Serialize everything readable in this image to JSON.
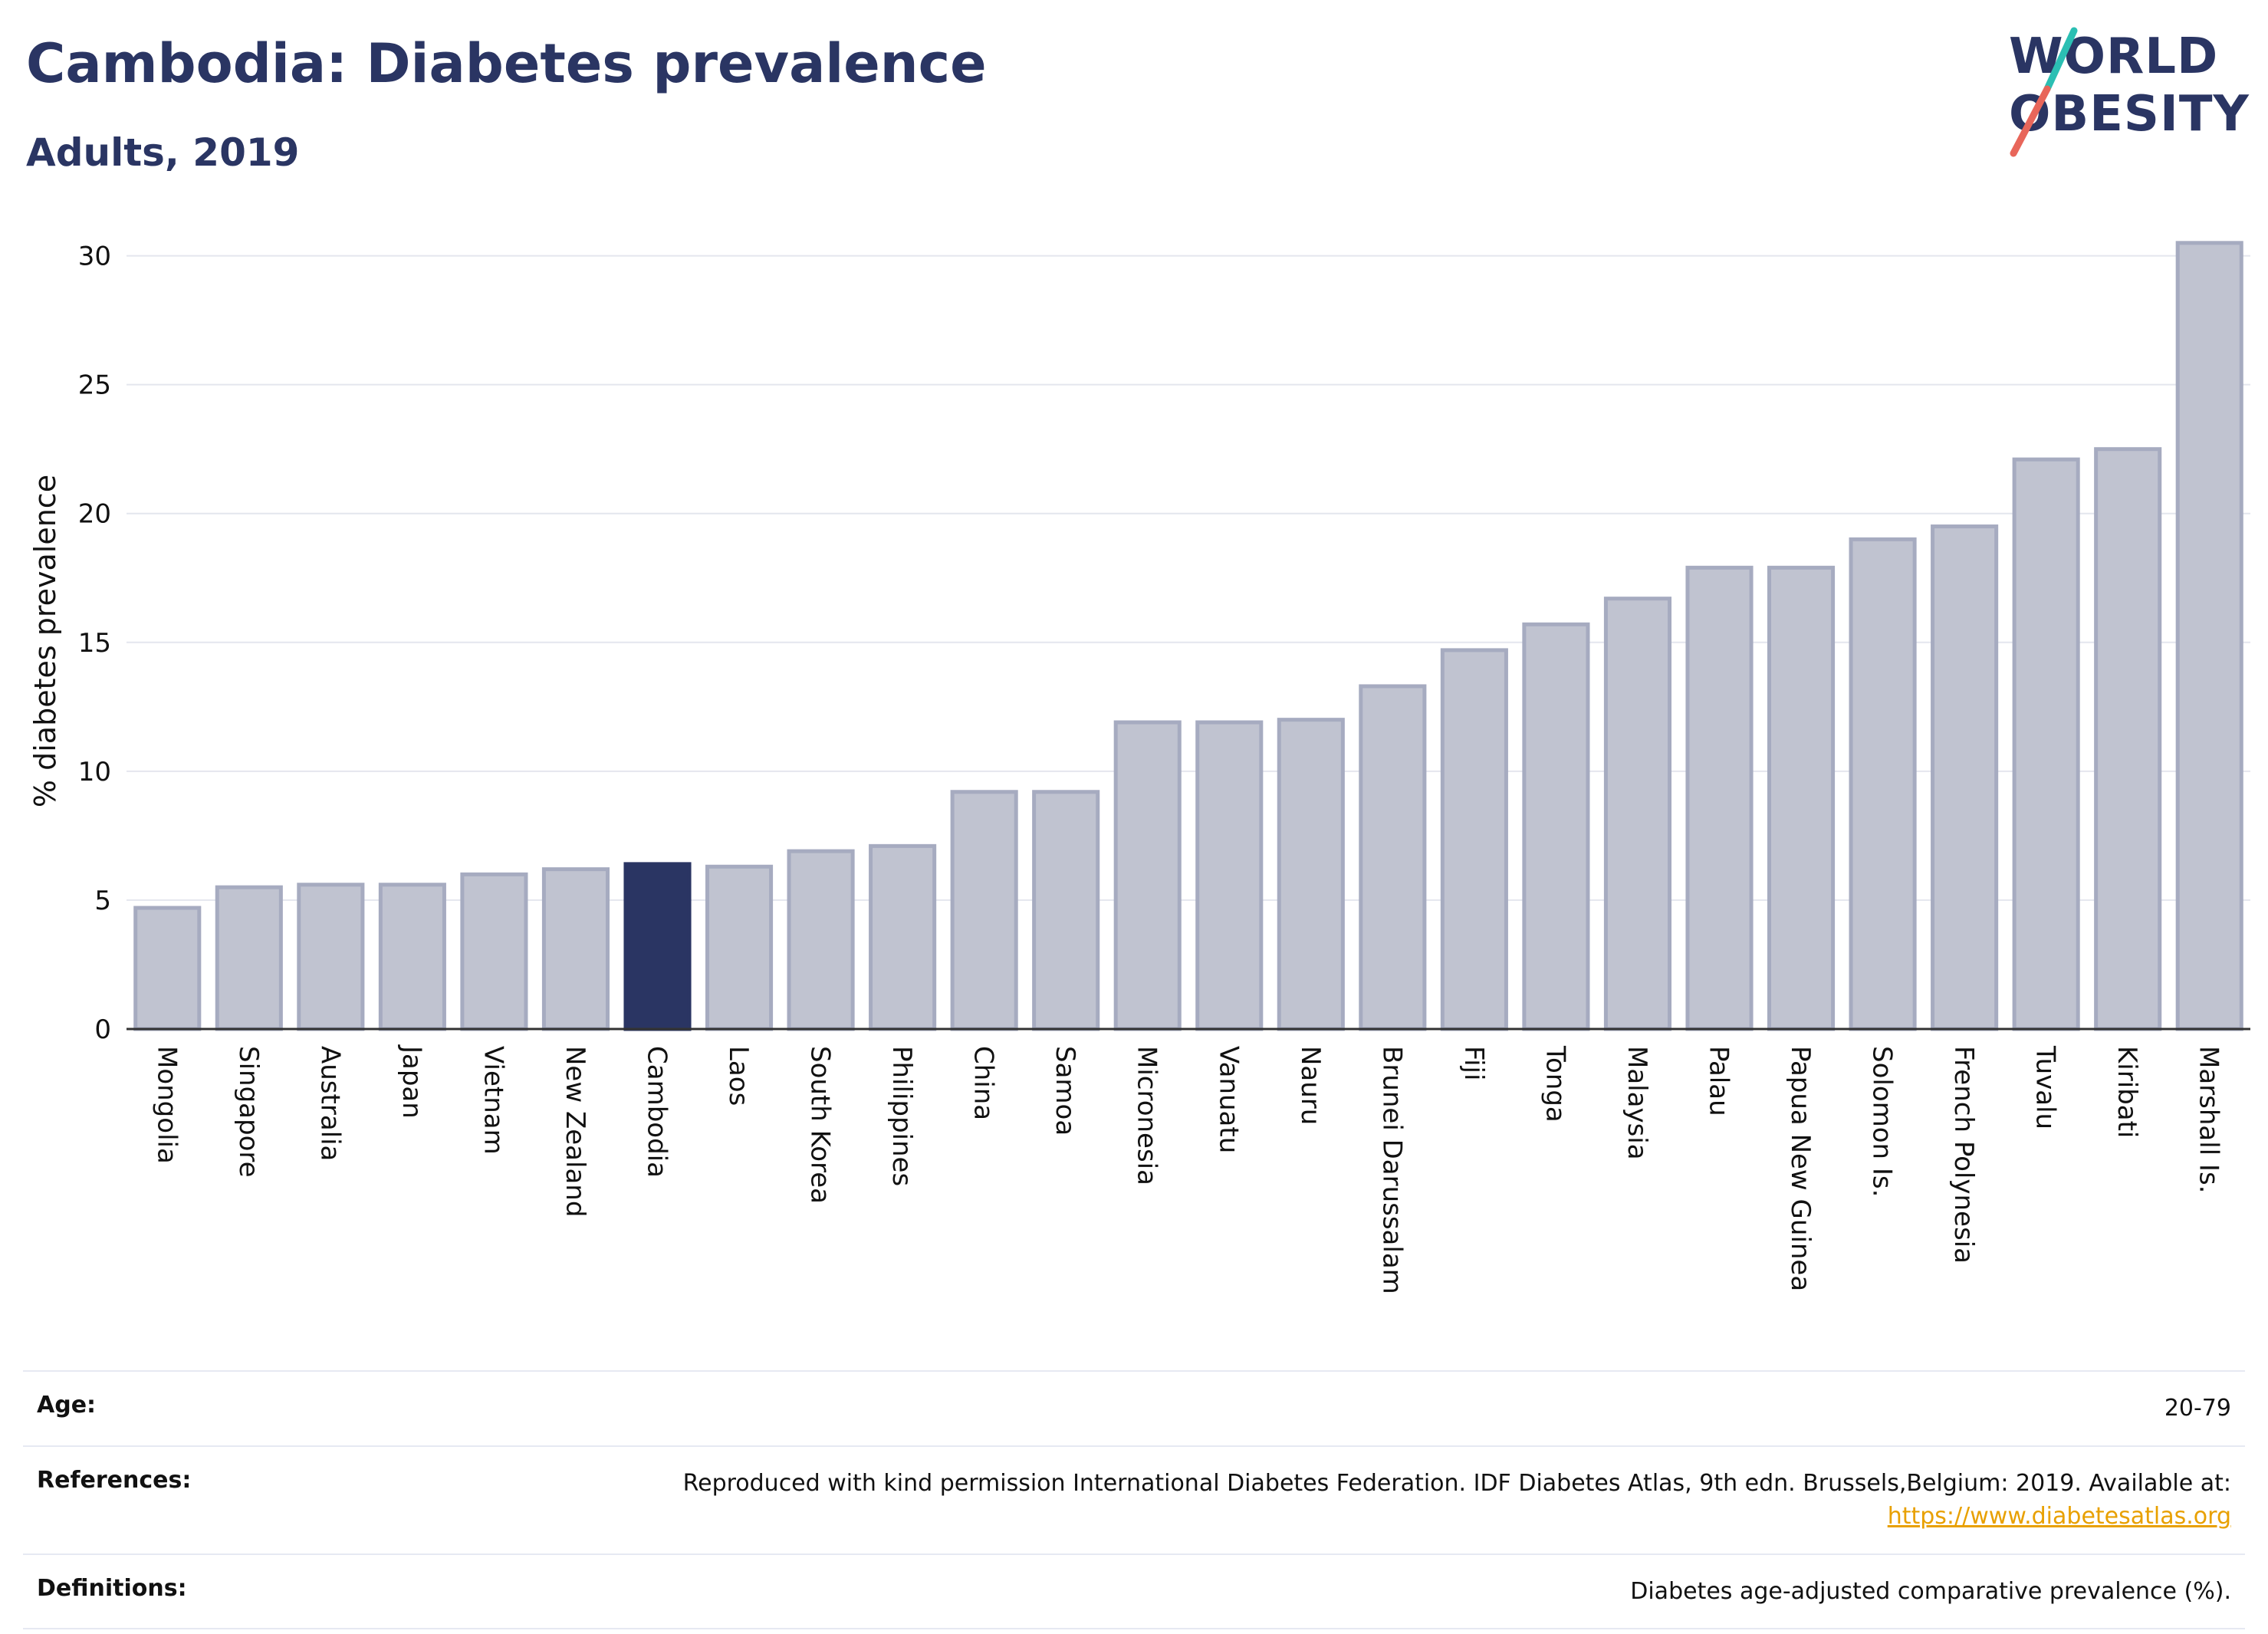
{
  "header": {
    "title": "Cambodia: Diabetes prevalence",
    "subtitle": "Adults, 2019"
  },
  "logo": {
    "line1": "WORLD",
    "line2": "OBESITY",
    "slash_colors": [
      "#2bbfb3",
      "#e8665a"
    ]
  },
  "chart_data": {
    "type": "bar",
    "ylabel": "% diabetes prevalence",
    "ylim": [
      0,
      31
    ],
    "yticks": [
      0,
      5,
      10,
      15,
      20,
      25,
      30
    ],
    "grid": true,
    "highlight": "Cambodia",
    "colors": {
      "bar": "#c0c3d0",
      "bar_edge": "#a6abc0",
      "highlight": "#2a3563"
    },
    "categories": [
      "Mongolia",
      "Singapore",
      "Australia",
      "Japan",
      "Vietnam",
      "New Zealand",
      "Cambodia",
      "Laos",
      "South Korea",
      "Philippines",
      "China",
      "Samoa",
      "Micronesia",
      "Vanuatu",
      "Nauru",
      "Brunei Darussalam",
      "Fiji",
      "Tonga",
      "Malaysia",
      "Palau",
      "Papua New Guinea",
      "Solomon Is.",
      "French Polynesia",
      "Tuvalu",
      "Kiribati",
      "Marshall Is."
    ],
    "values": [
      4.7,
      5.5,
      5.6,
      5.6,
      6.0,
      6.2,
      6.4,
      6.3,
      6.9,
      7.1,
      9.2,
      9.2,
      11.9,
      11.9,
      12.0,
      13.3,
      14.7,
      15.7,
      16.7,
      17.9,
      17.9,
      19.0,
      19.5,
      22.1,
      22.5,
      30.5
    ]
  },
  "table": {
    "rows": [
      {
        "key": "Age:",
        "value": "20-79"
      },
      {
        "key": "References:",
        "value": "Reproduced with kind permission International Diabetes Federation. IDF Diabetes Atlas, 9th edn. Brussels,Belgium: 2019. Available at:",
        "link": "https://www.diabetesatlas.org"
      },
      {
        "key": "Definitions:",
        "value": "Diabetes age-adjusted comparative prevalence (%)."
      }
    ]
  }
}
